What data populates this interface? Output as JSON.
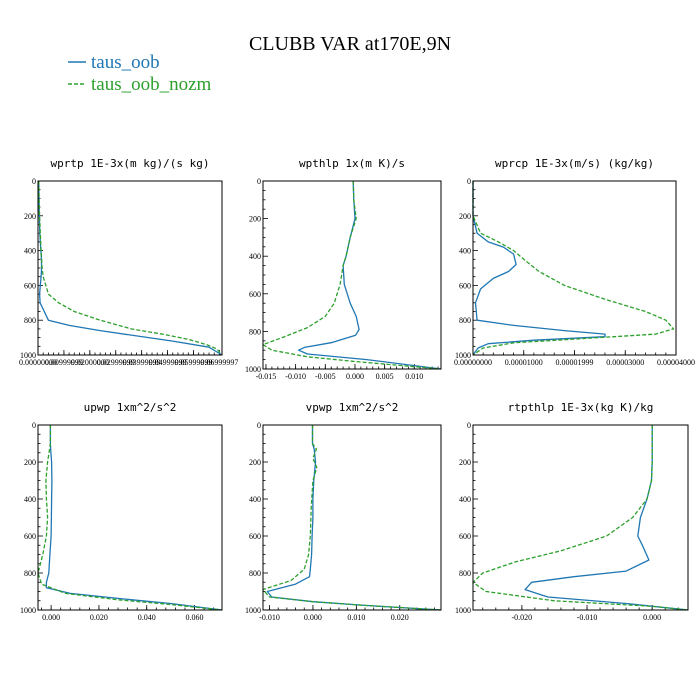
{
  "figure": {
    "title": "CLUBB VAR at170E,9N"
  },
  "colors": {
    "taus_oob": "#1f77b4",
    "taus_oob_nozm": "#2ca02c"
  },
  "legend": [
    {
      "label": "taus_oob",
      "color": "#1f77b4",
      "dash": false
    },
    {
      "label": "taus_oob_nozm",
      "color": "#2ca02c",
      "dash": true
    }
  ],
  "chart_data": [
    {
      "type": "line",
      "title": "wprtp 1E-3x(m kg)/(s kg)",
      "xlim": [
        0,
        0.071
      ],
      "ylim": [
        0,
        1000
      ],
      "y_inverted": true,
      "xticks": [
        0,
        0.01,
        0.02,
        0.03,
        0.04,
        0.05,
        0.06,
        0.07
      ],
      "xtick_labels": [
        "0.00000000",
        "0.00999999",
        "0.02000000",
        "0.02999999",
        "0.03999999",
        "0.04999999",
        "0.05999999",
        "0.06999997"
      ],
      "yticks": [
        0,
        200,
        400,
        600,
        800,
        1000
      ],
      "ytick_labels": [
        "0",
        "200",
        "400",
        "600",
        "800",
        "1000"
      ],
      "series": [
        {
          "name": "taus_oob",
          "x": [
            0.0003,
            0.0004,
            0.0005,
            0.0007,
            0.0009,
            0.0011,
            0.0013,
            0.0014,
            0.0012,
            0.0009,
            0.0006,
            0.0008,
            0.004,
            0.012,
            0.024,
            0.038,
            0.052,
            0.066,
            0.071
          ],
          "y": [
            0,
            100,
            200,
            300,
            350,
            400,
            450,
            500,
            550,
            600,
            650,
            700,
            800,
            830,
            860,
            890,
            920,
            955,
            1000
          ]
        },
        {
          "name": "taus_oob_nozm",
          "x": [
            0.0003,
            0.0004,
            0.0006,
            0.0009,
            0.0012,
            0.0014,
            0.0016,
            0.002,
            0.004,
            0.008,
            0.014,
            0.024,
            0.036,
            0.048,
            0.058,
            0.065,
            0.069,
            0.071
          ],
          "y": [
            0,
            100,
            200,
            300,
            400,
            450,
            500,
            550,
            650,
            700,
            750,
            800,
            850,
            880,
            910,
            940,
            965,
            1000
          ]
        }
      ]
    },
    {
      "type": "line",
      "title": "wpthlp 1x(m K)/s",
      "xlim": [
        -0.0155,
        0.0145
      ],
      "ylim": [
        0,
        1000
      ],
      "y_inverted": true,
      "xticks": [
        -0.015,
        -0.01,
        -0.005,
        0,
        0.005,
        0.01
      ],
      "xtick_labels": [
        "-0.015",
        "-0.010",
        "-0.005",
        "0.000",
        "0.005",
        "0.010"
      ],
      "yticks": [
        0,
        200,
        400,
        600,
        800,
        1000
      ],
      "ytick_labels": [
        "0",
        "200",
        "400",
        "600",
        "800",
        "1000"
      ],
      "series": [
        {
          "name": "taus_oob",
          "x": [
            -0.0003,
            -0.0002,
            0.0,
            -0.0008,
            -0.0015,
            -0.002,
            -0.0018,
            -0.0008,
            0.0002,
            0.0007,
            0.0001,
            -0.004,
            -0.0085,
            -0.0095,
            -0.008,
            0.002,
            0.0145
          ],
          "y": [
            0,
            100,
            200,
            300,
            400,
            450,
            550,
            650,
            720,
            790,
            820,
            860,
            885,
            900,
            920,
            950,
            1000
          ]
        },
        {
          "name": "taus_oob_nozm",
          "x": [
            -0.0003,
            -0.0002,
            0.0002,
            -0.0008,
            -0.0015,
            -0.002,
            -0.0025,
            -0.0035,
            -0.005,
            -0.008,
            -0.012,
            -0.0155,
            -0.014,
            -0.008,
            0.0,
            0.0145
          ],
          "y": [
            0,
            100,
            200,
            300,
            400,
            450,
            550,
            650,
            720,
            780,
            830,
            870,
            900,
            935,
            960,
            1000
          ]
        }
      ]
    },
    {
      "type": "line",
      "title": "wprcp 1E-3x(m/s) (kg/kg)",
      "xlim": [
        0,
        4e-05
      ],
      "ylim": [
        0,
        1000
      ],
      "y_inverted": true,
      "xticks": [
        0,
        1e-05,
        2e-05,
        3e-05,
        4e-05
      ],
      "xtick_labels": [
        "0.00000000",
        "0.00001000",
        "0.00001999",
        "0.00003000",
        "0.00004000"
      ],
      "yticks": [
        0,
        200,
        400,
        600,
        800,
        1000
      ],
      "ytick_labels": [
        "0",
        "200",
        "400",
        "600",
        "800",
        "1000"
      ],
      "series": [
        {
          "name": "taus_oob",
          "x": [
            0,
            0,
            8e-07,
            3e-06,
            6e-06,
            8e-06,
            8.5e-06,
            7e-06,
            4e-06,
            1.5e-06,
            5e-07,
            8e-07,
            8e-06,
            1.8e-05,
            2.6e-05,
            2.6e-05,
            1.2e-05,
            3e-06,
            1e-06,
            0
          ],
          "y": [
            0,
            200,
            300,
            350,
            380,
            420,
            480,
            520,
            560,
            620,
            700,
            800,
            830,
            860,
            880,
            895,
            915,
            935,
            960,
            1000
          ]
        },
        {
          "name": "taus_oob_nozm",
          "x": [
            0,
            0,
            1.5e-06,
            5e-06,
            8e-06,
            1e-05,
            1.3e-05,
            1.8e-05,
            2.6e-05,
            3.4e-05,
            3.8e-05,
            3.95e-05,
            3.6e-05,
            2.2e-05,
            8e-06,
            2e-06,
            0
          ],
          "y": [
            0,
            200,
            300,
            350,
            400,
            450,
            520,
            600,
            680,
            750,
            800,
            850,
            880,
            905,
            930,
            960,
            1000
          ]
        }
      ]
    },
    {
      "type": "line",
      "title": "upwp 1xm^2/s^2",
      "xlim": [
        -0.0055,
        0.0715
      ],
      "ylim": [
        0,
        1000
      ],
      "y_inverted": true,
      "xticks": [
        0,
        0.02,
        0.04,
        0.06
      ],
      "xtick_labels": [
        "0.000",
        "0.020",
        "0.040",
        "0.060"
      ],
      "yticks": [
        0,
        200,
        400,
        600,
        800,
        1000
      ],
      "ytick_labels": [
        "0",
        "200",
        "400",
        "600",
        "800",
        "1000"
      ],
      "series": [
        {
          "name": "taus_oob",
          "x": [
            -0.0003,
            -0.0003,
            -0.0001,
            0.0002,
            0.0003,
            0.0002,
            0.0001,
            0.0,
            -0.0005,
            -0.001,
            -0.002,
            -0.002,
            0.008,
            0.03,
            0.05,
            0.0715
          ],
          "y": [
            0,
            100,
            150,
            200,
            300,
            400,
            500,
            600,
            700,
            800,
            850,
            880,
            910,
            940,
            965,
            1000
          ]
        },
        {
          "name": "taus_oob_nozm",
          "x": [
            -0.0003,
            -0.0003,
            -0.0015,
            -0.0022,
            -0.002,
            -0.0015,
            -0.002,
            -0.0035,
            -0.0055,
            -0.004,
            0.006,
            0.028,
            0.05,
            0.0715
          ],
          "y": [
            0,
            100,
            200,
            300,
            400,
            500,
            600,
            700,
            800,
            860,
            910,
            945,
            970,
            1000
          ]
        }
      ]
    },
    {
      "type": "line",
      "title": "vpwp 1xm^2/s^2",
      "xlim": [
        -0.0115,
        0.0295
      ],
      "ylim": [
        0,
        1000
      ],
      "y_inverted": true,
      "xticks": [
        -0.01,
        0,
        0.01,
        0.02
      ],
      "xtick_labels": [
        "-0.010",
        "0.000",
        "0.010",
        "0.020"
      ],
      "yticks": [
        0,
        200,
        400,
        600,
        800,
        1000
      ],
      "ytick_labels": [
        "0",
        "200",
        "400",
        "600",
        "800",
        "1000"
      ],
      "series": [
        {
          "name": "taus_oob",
          "x": [
            -0.0001,
            -0.0001,
            0.0003,
            0.0006,
            0.0002,
            0.0,
            0.0,
            -0.0002,
            -0.0003,
            -0.0006,
            -0.0008,
            -0.004,
            -0.0105,
            -0.0095,
            0.0,
            0.012,
            0.0295
          ],
          "y": [
            0,
            100,
            130,
            200,
            300,
            400,
            500,
            600,
            700,
            780,
            820,
            860,
            900,
            930,
            955,
            975,
            1000
          ]
        },
        {
          "name": "taus_oob_nozm",
          "x": [
            -0.0001,
            -0.0001,
            0.0008,
            0.0,
            0.0009,
            0.0,
            -0.0004,
            -0.0006,
            -0.001,
            -0.002,
            -0.005,
            -0.0115,
            -0.01,
            0.0,
            0.012,
            0.0295
          ],
          "y": [
            0,
            100,
            130,
            180,
            230,
            300,
            450,
            600,
            700,
            780,
            840,
            890,
            930,
            955,
            975,
            1000
          ]
        }
      ]
    },
    {
      "type": "line",
      "title": "rtpthlp 1E-3x(kg K)/kg",
      "xlim": [
        -0.0275,
        0.0055
      ],
      "ylim": [
        0,
        1000
      ],
      "y_inverted": true,
      "xticks": [
        -0.02,
        -0.01,
        0
      ],
      "xtick_labels": [
        "-0.020",
        "-0.010",
        "0.000"
      ],
      "yticks": [
        0,
        200,
        400,
        600,
        800,
        1000
      ],
      "ytick_labels": [
        "0",
        "200",
        "400",
        "600",
        "800",
        "1000"
      ],
      "series": [
        {
          "name": "taus_oob",
          "x": [
            0.0,
            0.0,
            -0.0001,
            -0.0008,
            -0.0018,
            -0.0022,
            -0.0015,
            -0.0005,
            -0.004,
            -0.012,
            -0.0185,
            -0.0195,
            -0.016,
            -0.004,
            0.0055
          ],
          "y": [
            0,
            200,
            300,
            400,
            500,
            600,
            650,
            730,
            790,
            820,
            850,
            890,
            930,
            965,
            1000
          ]
        },
        {
          "name": "taus_oob_nozm",
          "x": [
            0.0,
            0.0,
            -0.0001,
            -0.0008,
            -0.003,
            -0.007,
            -0.014,
            -0.021,
            -0.026,
            -0.0275,
            -0.0255,
            -0.015,
            0.0,
            0.0055
          ],
          "y": [
            0,
            200,
            300,
            400,
            500,
            600,
            680,
            740,
            800,
            850,
            900,
            950,
            980,
            1000
          ]
        }
      ]
    }
  ]
}
